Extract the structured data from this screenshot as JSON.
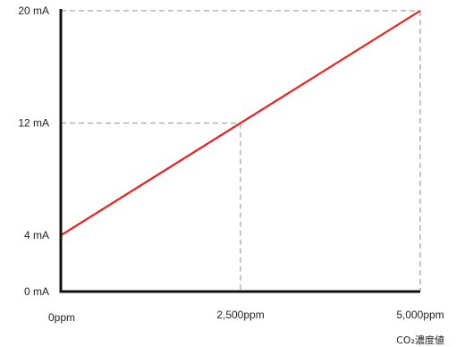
{
  "chart_data": {
    "type": "line",
    "x_unit_label": "CO₂濃度値",
    "x_ticks": [
      {
        "value": 0,
        "label": "0ppm"
      },
      {
        "value": 2500,
        "label": "2,500ppm"
      },
      {
        "value": 5000,
        "label": "5,000ppm"
      }
    ],
    "y_ticks": [
      {
        "value": 0,
        "label": "0 mA"
      },
      {
        "value": 4,
        "label": "4 mA"
      },
      {
        "value": 12,
        "label": "12 mA"
      },
      {
        "value": 20,
        "label": "20 mA"
      }
    ],
    "xlim": [
      0,
      5000
    ],
    "ylim": [
      0,
      20
    ],
    "series": [
      {
        "x": [
          0,
          5000
        ],
        "y": [
          4,
          20
        ],
        "color": "#e8201e"
      }
    ],
    "guides": [
      {
        "x": 2500,
        "y": 12
      },
      {
        "x": 5000,
        "y": 20
      }
    ],
    "grid": false,
    "axis_color": "#111111",
    "guide_color": "#a8a8a8"
  }
}
